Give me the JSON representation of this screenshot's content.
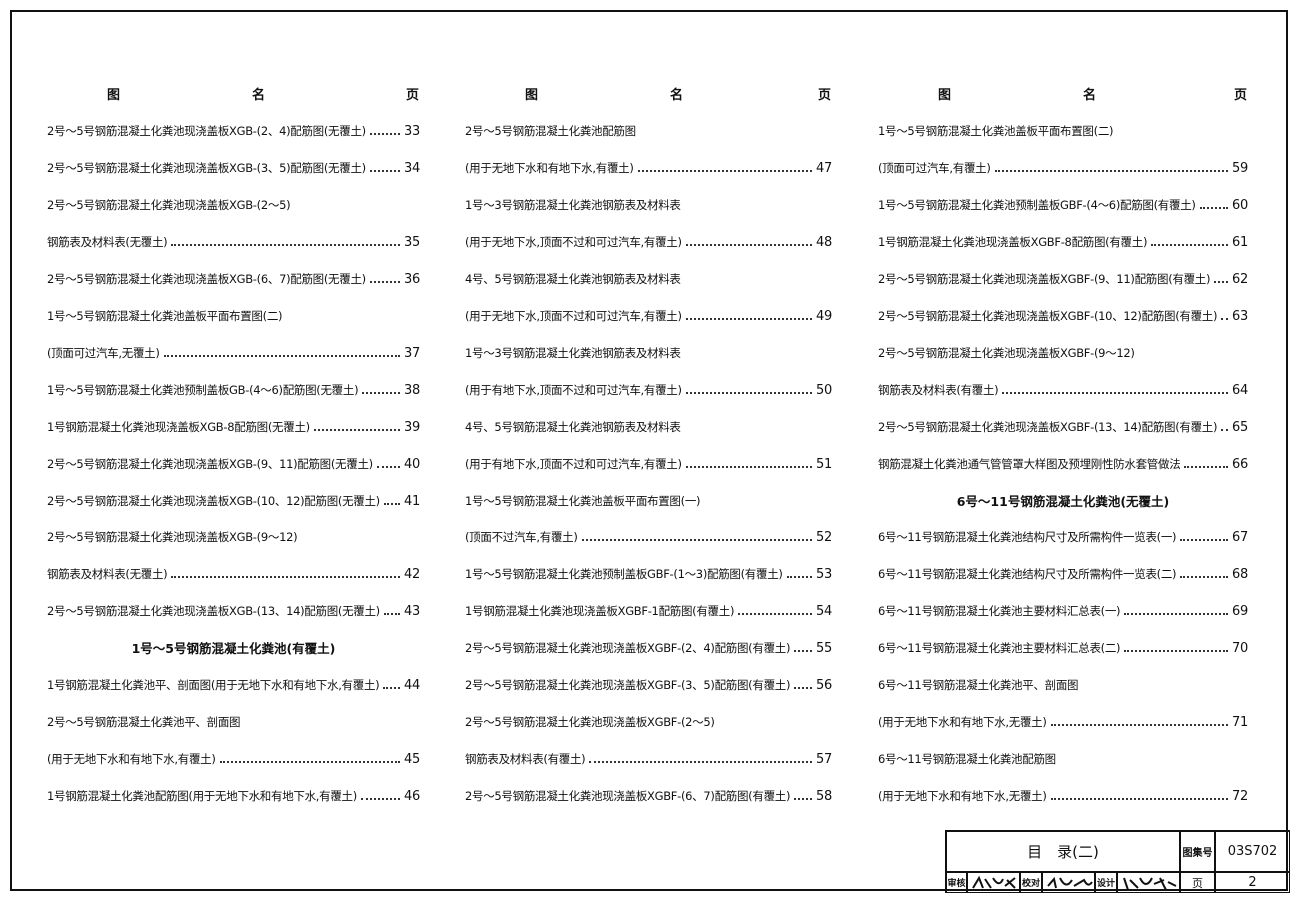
{
  "columns": [
    {
      "header": {
        "figure": "图",
        "name": "名",
        "page": "页"
      },
      "rows": [
        {
          "title": "2号～5号钢筋混凝土化粪池现浇盖板XGB-(2、4)配筋图(无覆土)",
          "page": 33
        },
        {
          "title": "2号～5号钢筋混凝土化粪池现浇盖板XGB-(3、5)配筋图(无覆土)",
          "page": 34
        },
        {
          "title": "2号～5号钢筋混凝土化粪池现浇盖板XGB-(2～5)"
        },
        {
          "title": "钢筋表及材料表(无覆土)",
          "page": 35
        },
        {
          "title": "2号～5号钢筋混凝土化粪池现浇盖板XGB-(6、7)配筋图(无覆土)",
          "page": 36
        },
        {
          "title": "1号～5号钢筋混凝土化粪池盖板平面布置图(二)"
        },
        {
          "title": "(顶面可过汽车,无覆土)",
          "page": 37
        },
        {
          "title": "1号～5号钢筋混凝土化粪池预制盖板GB-(4～6)配筋图(无覆土)",
          "page": 38
        },
        {
          "title": "1号钢筋混凝土化粪池现浇盖板XGB-8配筋图(无覆土)",
          "page": 39
        },
        {
          "title": "2号～5号钢筋混凝土化粪池现浇盖板XGB-(9、11)配筋图(无覆土)",
          "page": 40
        },
        {
          "title": "2号～5号钢筋混凝土化粪池现浇盖板XGB-(10、12)配筋图(无覆土)",
          "page": 41
        },
        {
          "title": "2号～5号钢筋混凝土化粪池现浇盖板XGB-(9～12)"
        },
        {
          "title": "钢筋表及材料表(无覆土)",
          "page": 42
        },
        {
          "title": "2号～5号钢筋混凝土化粪池现浇盖板XGB-(13、14)配筋图(无覆土)",
          "page": 43
        },
        {
          "heading": "1号～5号钢筋混凝土化粪池(有覆土)"
        },
        {
          "title": "1号钢筋混凝土化粪池平、剖面图(用于无地下水和有地下水,有覆土)",
          "page": 44
        },
        {
          "title": "2号～5号钢筋混凝土化粪池平、剖面图"
        },
        {
          "title": "(用于无地下水和有地下水,有覆土)",
          "page": 45
        },
        {
          "title": "1号钢筋混凝土化粪池配筋图(用于无地下水和有地下水,有覆土)",
          "page": 46
        }
      ]
    },
    {
      "header": {
        "figure": "图",
        "name": "名",
        "page": "页"
      },
      "rows": [
        {
          "title": "2号～5号钢筋混凝土化粪池配筋图"
        },
        {
          "title": "(用于无地下水和有地下水,有覆土)",
          "page": 47
        },
        {
          "title": "1号～3号钢筋混凝土化粪池钢筋表及材料表"
        },
        {
          "title": "(用于无地下水,顶面不过和可过汽车,有覆土)",
          "page": 48
        },
        {
          "title": "4号、5号钢筋混凝土化粪池钢筋表及材料表"
        },
        {
          "title": "(用于无地下水,顶面不过和可过汽车,有覆土)",
          "page": 49
        },
        {
          "title": "1号～3号钢筋混凝土化粪池钢筋表及材料表"
        },
        {
          "title": "(用于有地下水,顶面不过和可过汽车,有覆土)",
          "page": 50
        },
        {
          "title": "4号、5号钢筋混凝土化粪池钢筋表及材料表"
        },
        {
          "title": "(用于有地下水,顶面不过和可过汽车,有覆土)",
          "page": 51
        },
        {
          "title": "1号～5号钢筋混凝土化粪池盖板平面布置图(一)"
        },
        {
          "title": "(顶面不过汽车,有覆土)",
          "page": 52
        },
        {
          "title": "1号～5号钢筋混凝土化粪池预制盖板GBF-(1～3)配筋图(有覆土)",
          "page": 53
        },
        {
          "title": "1号钢筋混凝土化粪池现浇盖板XGBF-1配筋图(有覆土)",
          "page": 54
        },
        {
          "title": "2号～5号钢筋混凝土化粪池现浇盖板XGBF-(2、4)配筋图(有覆土)",
          "page": 55
        },
        {
          "title": "2号～5号钢筋混凝土化粪池现浇盖板XGBF-(3、5)配筋图(有覆土)",
          "page": 56
        },
        {
          "title": "2号～5号钢筋混凝土化粪池现浇盖板XGBF-(2～5)"
        },
        {
          "title": "钢筋表及材料表(有覆土)",
          "page": 57
        },
        {
          "title": "2号～5号钢筋混凝土化粪池现浇盖板XGBF-(6、7)配筋图(有覆土)",
          "page": 58
        }
      ]
    },
    {
      "header": {
        "figure": "图",
        "name": "名",
        "page": "页"
      },
      "rows": [
        {
          "title": "1号～5号钢筋混凝土化粪池盖板平面布置图(二)"
        },
        {
          "title": "(顶面可过汽车,有覆土)",
          "page": 59
        },
        {
          "title": "1号～5号钢筋混凝土化粪池预制盖板GBF-(4～6)配筋图(有覆土)",
          "page": 60
        },
        {
          "title": "1号钢筋混凝土化粪池现浇盖板XGBF-8配筋图(有覆土)",
          "page": 61
        },
        {
          "title": "2号～5号钢筋混凝土化粪池现浇盖板XGBF-(9、11)配筋图(有覆土)",
          "page": 62
        },
        {
          "title": "2号～5号钢筋混凝土化粪池现浇盖板XGBF-(10、12)配筋图(有覆土)",
          "page": 63
        },
        {
          "title": "2号～5号钢筋混凝土化粪池现浇盖板XGBF-(9～12)"
        },
        {
          "title": "钢筋表及材料表(有覆土)",
          "page": 64
        },
        {
          "title": "2号～5号钢筋混凝土化粪池现浇盖板XGBF-(13、14)配筋图(有覆土)",
          "page": 65
        },
        {
          "title": "钢筋混凝土化粪池通气管管罩大样图及预埋刚性防水套管做法",
          "page": 66
        },
        {
          "heading": "6号～11号钢筋混凝土化粪池(无覆土)"
        },
        {
          "title": "6号～11号钢筋混凝土化粪池结构尺寸及所需构件一览表(一)",
          "page": 67
        },
        {
          "title": "6号～11号钢筋混凝土化粪池结构尺寸及所需构件一览表(二)",
          "page": 68
        },
        {
          "title": "6号～11号钢筋混凝土化粪池主要材料汇总表(一)",
          "page": 69
        },
        {
          "title": "6号～11号钢筋混凝土化粪池主要材料汇总表(二)",
          "page": 70
        },
        {
          "title": "6号～11号钢筋混凝土化粪池平、剖面图"
        },
        {
          "title": "(用于无地下水和有地下水,无覆土)",
          "page": 71
        },
        {
          "title": "6号～11号钢筋混凝土化粪池配筋图"
        },
        {
          "title": "(用于无地下水和有地下水,无覆土)",
          "page": 72
        }
      ]
    }
  ],
  "title_block": {
    "title": "目　录(二)",
    "atlas_label": "图集号",
    "atlas_no": "03S702",
    "review": "审核",
    "check": "校对",
    "design": "设计",
    "page_label": "页",
    "page_no": "2"
  }
}
